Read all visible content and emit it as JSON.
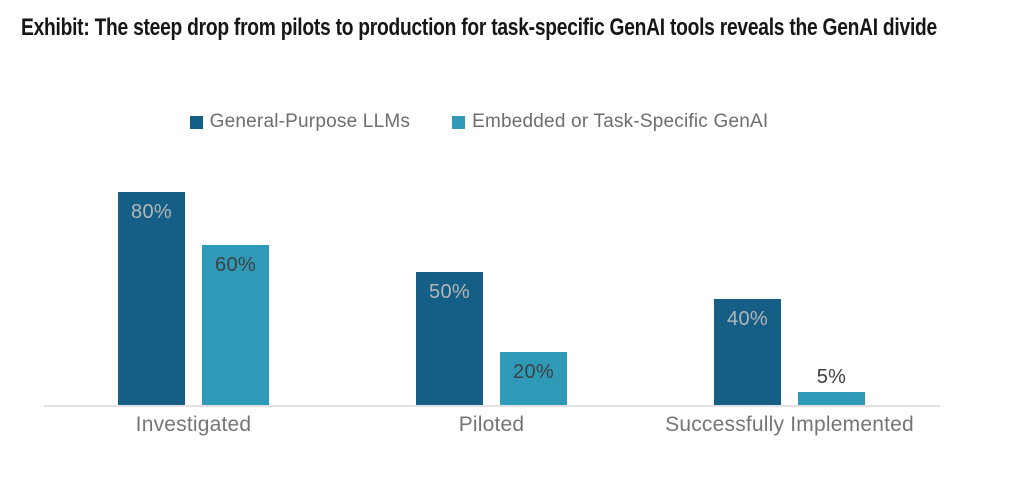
{
  "title": "Exhibit: The steep drop from pilots to production for task-specific GenAI tools reveals the GenAI divide",
  "legend": {
    "items": [
      {
        "label": "General-Purpose LLMs",
        "color": "#155F86"
      },
      {
        "label": "Embedded or Task-Specific GenAI",
        "color": "#2F9AB8"
      }
    ]
  },
  "colors": {
    "series_dark_blue": "#155F86",
    "series_teal": "#2F9AB8",
    "axis_line": "#E2E2E2",
    "category_label": "#757575",
    "legend_text": "#6E6E6E",
    "title_text": "#161616",
    "label_on_dark": "#B2B6B9",
    "label_on_teal": "#3E4143"
  },
  "chart_data": {
    "type": "bar",
    "title": "Exhibit: The steep drop from pilots to production for task-specific GenAI tools reveals the GenAI divide",
    "categories": [
      "Investigated",
      "Piloted",
      "Successfully Implemented"
    ],
    "series": [
      {
        "name": "General-Purpose LLMs",
        "values": [
          80,
          50,
          40
        ],
        "color": "#155F86",
        "label_color": "#B2B6B9"
      },
      {
        "name": "Embedded or Task-Specific GenAI",
        "values": [
          60,
          20,
          5
        ],
        "color": "#2F9AB8",
        "label_color": "#3E4143"
      }
    ],
    "value_unit": "%",
    "xlabel": "",
    "ylabel": "",
    "ylim": [
      0,
      100
    ],
    "grid": false,
    "y_axis_visible": false,
    "data_labels": "on_bars",
    "legend_position": "top"
  }
}
